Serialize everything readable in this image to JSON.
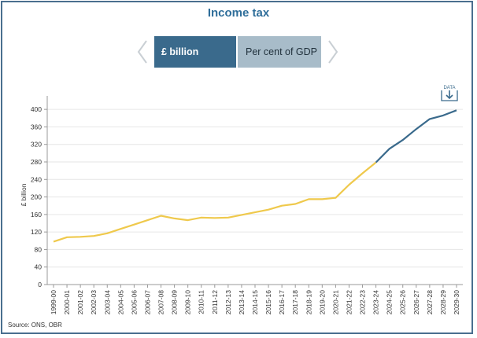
{
  "chart_data": {
    "type": "line",
    "title": "Income tax",
    "ylabel": "£ billion",
    "xlabel": "",
    "ylim": [
      0,
      420
    ],
    "yticks": [
      0,
      40,
      80,
      120,
      160,
      200,
      240,
      280,
      320,
      360,
      400
    ],
    "grid": true,
    "categories": [
      "1999-00",
      "2000-01",
      "2001-02",
      "2002-03",
      "2003-04",
      "2004-05",
      "2005-06",
      "2006-07",
      "2007-08",
      "2008-09",
      "2009-10",
      "2010-11",
      "2011-12",
      "2012-13",
      "2013-14",
      "2014-15",
      "2015-16",
      "2016-17",
      "2017-18",
      "2018-19",
      "2019-20",
      "2020-21",
      "2021-22",
      "2022-23",
      "2023-24",
      "2024-25",
      "2025-26",
      "2026-27",
      "2027-28",
      "2028-29",
      "2029-30"
    ],
    "series": [
      {
        "name": "",
        "color": "#efc94c",
        "values": [
          98,
          108,
          109,
          111,
          117,
          127,
          137,
          147,
          157,
          151,
          147,
          153,
          152,
          153,
          159,
          165,
          171,
          180,
          184,
          195,
          195,
          198,
          228,
          254,
          279,
          null,
          null,
          null,
          null,
          null,
          null
        ]
      },
      {
        "name": "",
        "color": "#3a6a8c",
        "values": [
          null,
          null,
          null,
          null,
          null,
          null,
          null,
          null,
          null,
          null,
          null,
          null,
          null,
          null,
          null,
          null,
          null,
          null,
          null,
          null,
          null,
          null,
          null,
          null,
          279,
          310,
          330,
          355,
          378,
          386,
          398
        ]
      }
    ]
  },
  "tabs": {
    "active_label": "£ billion",
    "inactive_label": "Per cent of GDP"
  },
  "data_button_label": "DATA",
  "source": "Source: ONS, OBR"
}
